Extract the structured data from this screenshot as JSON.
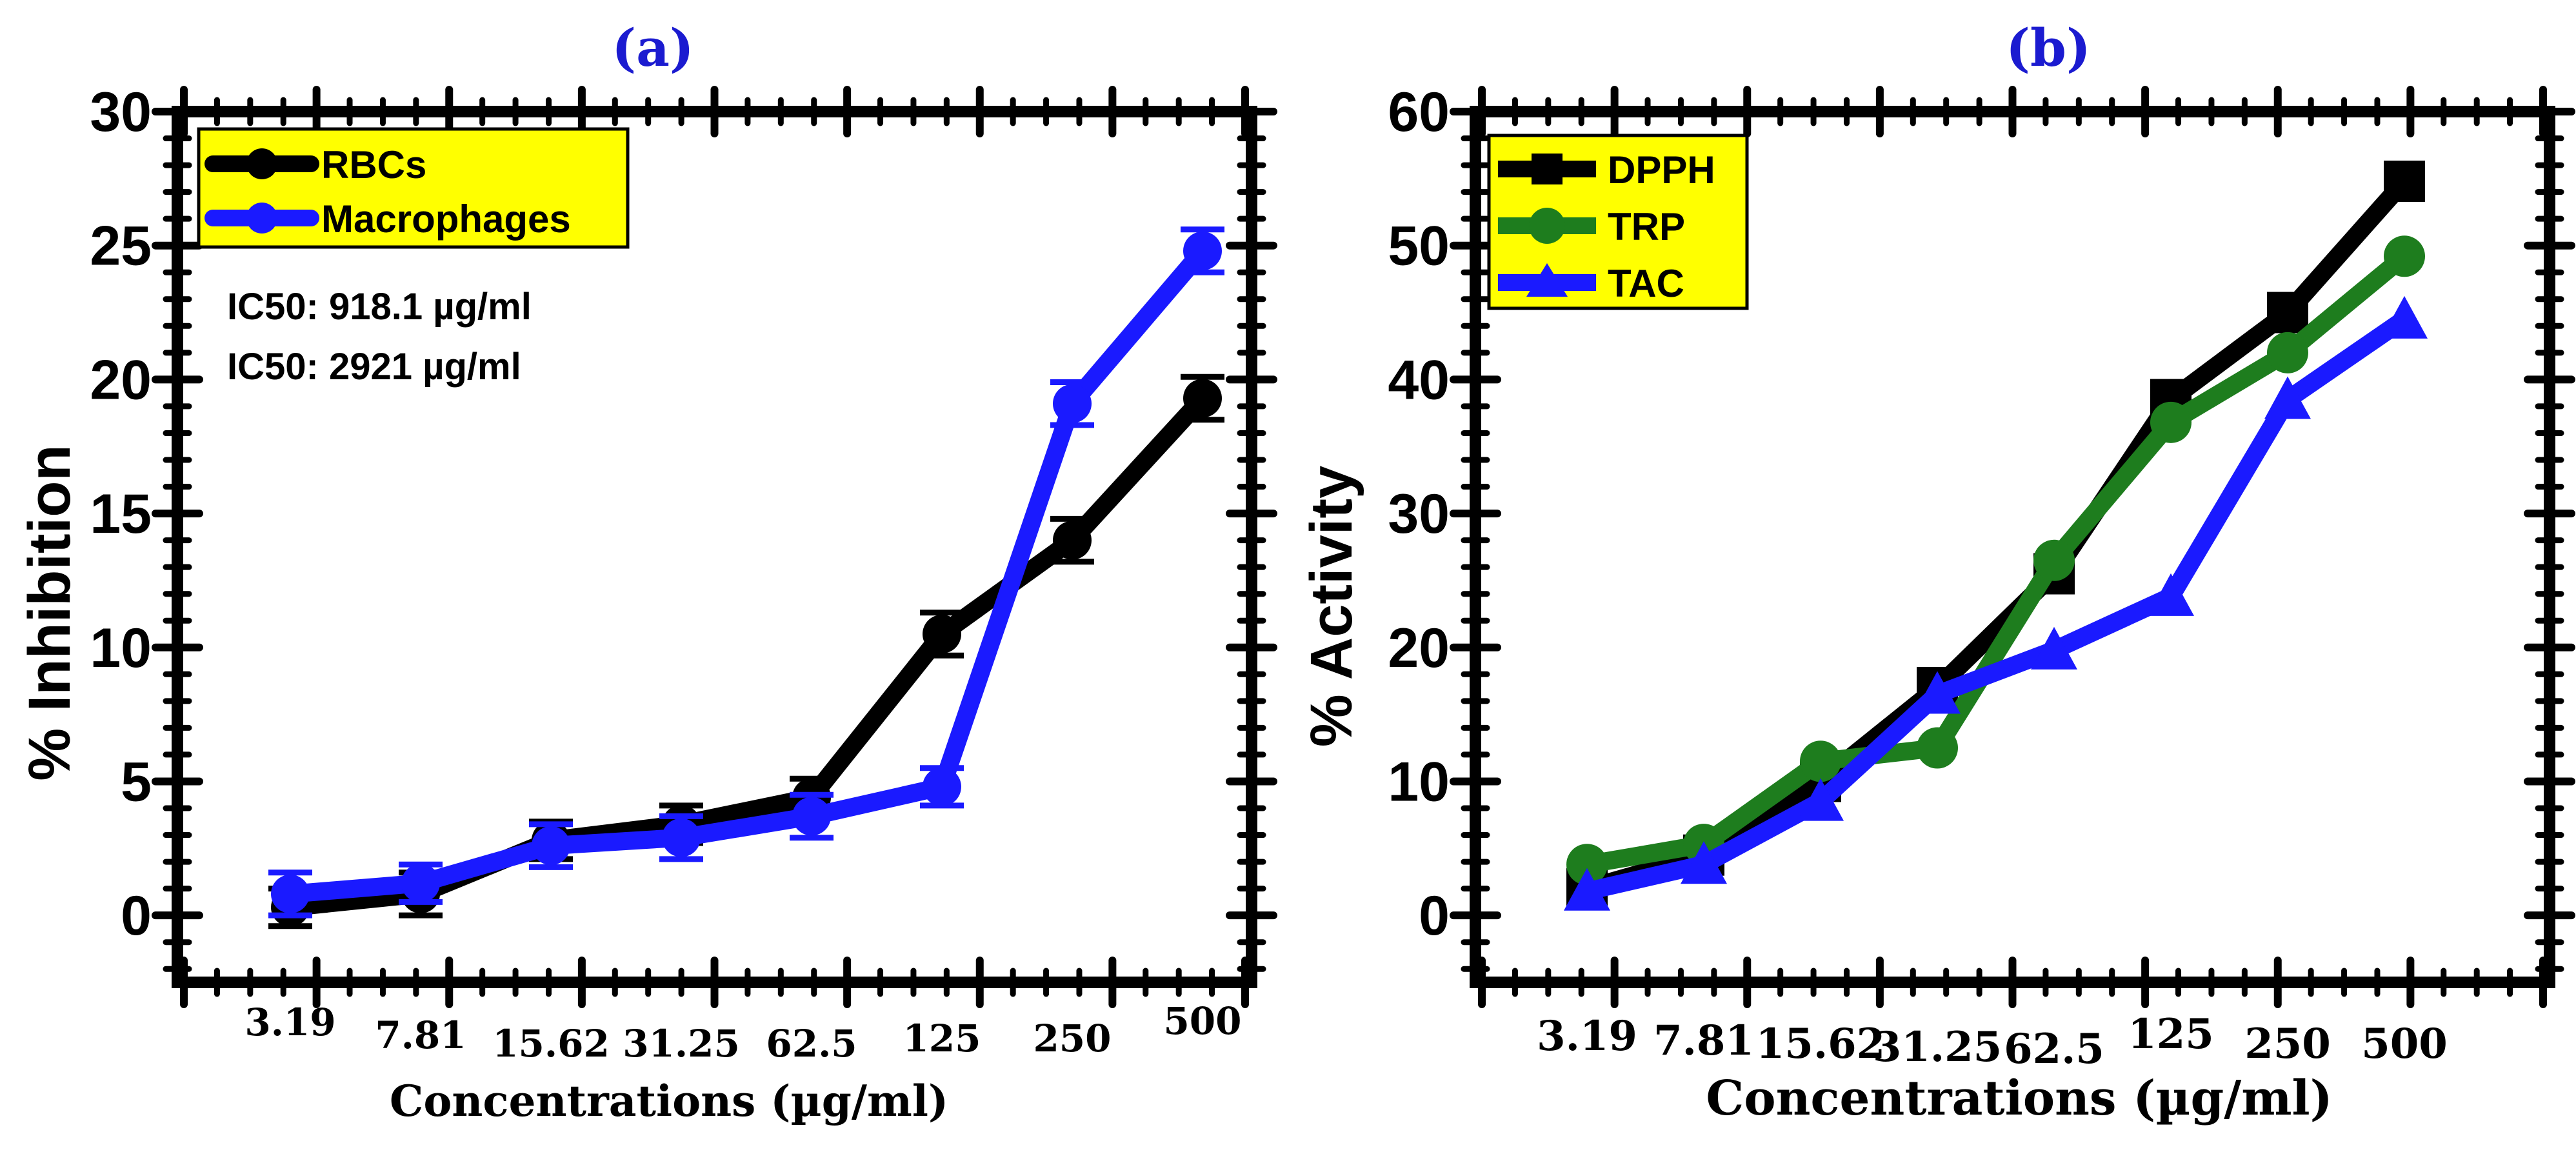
{
  "chart_data": [
    {
      "type": "line",
      "panel_label": "(a)",
      "title": "",
      "xlabel": "Concentrations (µg/ml)",
      "ylabel": "% Inhibition",
      "categories": [
        "3.19",
        "7.81",
        "15.62",
        "31.25",
        "62.5",
        "125",
        "250",
        "500"
      ],
      "ylim": [
        -2.5,
        30
      ],
      "yticks": [
        "0",
        "5",
        "10",
        "15",
        "20",
        "25",
        "30"
      ],
      "legend_position": "top-left",
      "series": [
        {
          "name": "RBCs",
          "color": "#000000",
          "marker": "circle",
          "values": [
            0.3,
            0.8,
            2.8,
            3.4,
            4.4,
            10.5,
            14.0,
            19.3
          ],
          "errors": [
            0.7,
            0.8,
            0.7,
            0.7,
            0.7,
            0.8,
            0.8,
            0.8
          ]
        },
        {
          "name": "Macrophages",
          "color": "#1a1aff",
          "marker": "circle",
          "values": [
            0.8,
            1.2,
            2.6,
            2.9,
            3.7,
            4.8,
            19.1,
            24.8
          ],
          "errors": [
            0.8,
            0.7,
            0.8,
            0.8,
            0.8,
            0.7,
            0.8,
            0.8
          ]
        }
      ],
      "annotations": [
        "IC50: 918.1 µg/ml",
        "IC50: 2921 µg/ml"
      ]
    },
    {
      "type": "line",
      "panel_label": "(b)",
      "title": "",
      "xlabel": "Concentrations (µg/ml)",
      "ylabel": "% Activity",
      "categories": [
        "3.19",
        "7.81",
        "15.62",
        "31.25",
        "62.5",
        "125",
        "250",
        "500"
      ],
      "ylim": [
        -5,
        60
      ],
      "yticks": [
        "0",
        "10",
        "20",
        "30",
        "40",
        "50",
        "60"
      ],
      "legend_position": "top-left",
      "series": [
        {
          "name": "DPPH",
          "color": "#000000",
          "marker": "square",
          "values": [
            2.0,
            4.5,
            10.0,
            17.0,
            25.5,
            38.5,
            45.0,
            54.8
          ]
        },
        {
          "name": "TRP",
          "color": "#1e7d1e",
          "marker": "circle",
          "values": [
            3.8,
            5.3,
            11.5,
            12.5,
            26.5,
            36.8,
            42.0,
            49.2
          ]
        },
        {
          "name": "TAC",
          "color": "#1a1aff",
          "marker": "triangle",
          "values": [
            1.8,
            3.8,
            8.5,
            16.5,
            19.8,
            23.8,
            38.5,
            44.5
          ]
        }
      ]
    }
  ]
}
